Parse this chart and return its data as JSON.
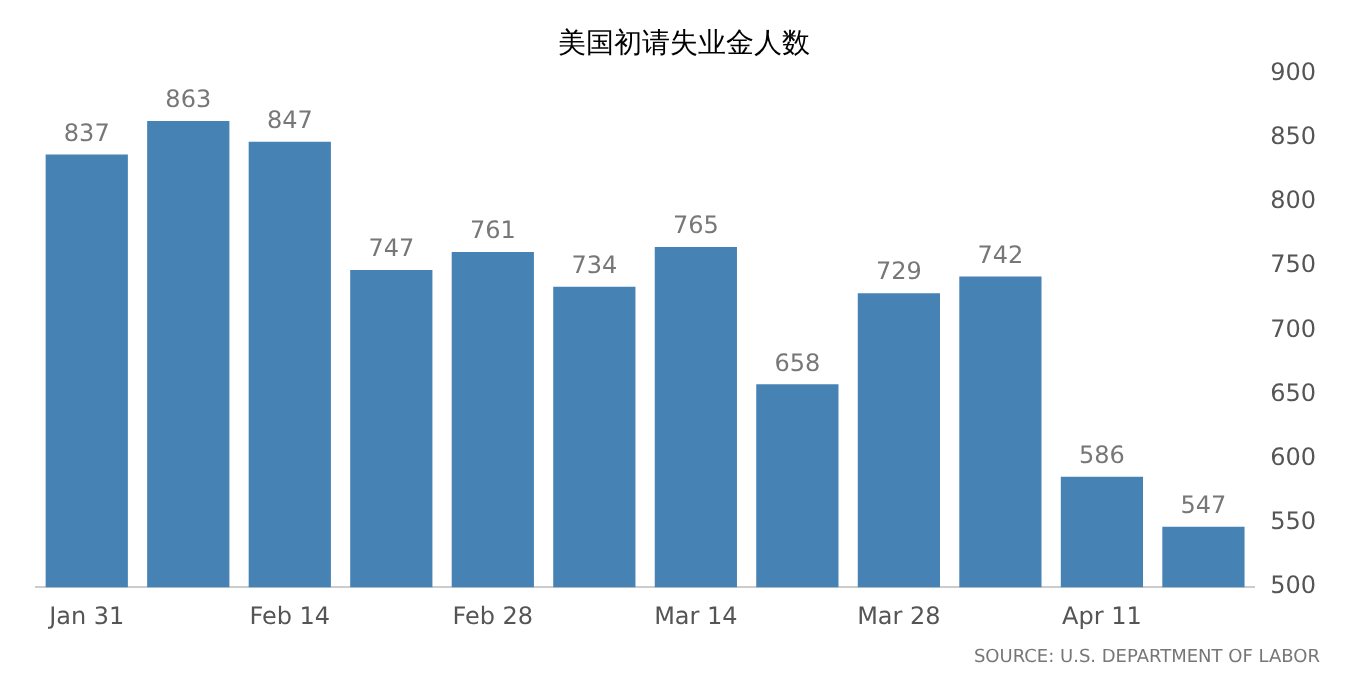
{
  "chart_data": {
    "type": "bar",
    "title": "美国初请失业金人数",
    "categories": [
      "Jan 31",
      null,
      "Feb 14",
      null,
      "Feb 28",
      null,
      "Mar 14",
      null,
      "Mar 28",
      null,
      "Apr 11",
      null
    ],
    "values": [
      837,
      863,
      847,
      747,
      761,
      734,
      765,
      658,
      729,
      742,
      586,
      547
    ],
    "color": "#4682b4",
    "data_labels": true,
    "ylim": [
      500,
      900
    ],
    "yticks": [
      500,
      550,
      600,
      650,
      700,
      750,
      800,
      850,
      900
    ],
    "annotations": [
      "SOURCE: U.S. DEPARTMENT OF LABOR"
    ]
  }
}
